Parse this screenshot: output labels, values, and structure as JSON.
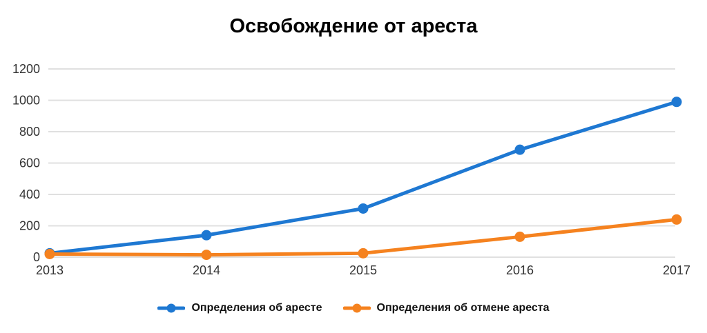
{
  "colors": {
    "background": "#ffffff",
    "title_text": "#000000",
    "tick_text": "#333333",
    "grid": "#e0e0e0",
    "series_blue": "#1e78d2",
    "series_orange": "#f5821f"
  },
  "chart_data": {
    "type": "line",
    "title": "Освобождение от ареста",
    "categories": [
      "2013",
      "2014",
      "2015",
      "2016",
      "2017"
    ],
    "series": [
      {
        "name": "Определения об аресте",
        "color": "#1e78d2",
        "values": [
          25,
          140,
          310,
          685,
          990
        ]
      },
      {
        "name": "Определения об отмене ареста",
        "color": "#f5821f",
        "values": [
          20,
          15,
          25,
          130,
          240
        ]
      }
    ],
    "xlabel": "",
    "ylabel": "",
    "ylim": [
      0,
      1200
    ],
    "yticks": [
      0,
      200,
      400,
      600,
      800,
      1000,
      1200
    ],
    "grid": "horizontal",
    "legend_position": "bottom"
  }
}
